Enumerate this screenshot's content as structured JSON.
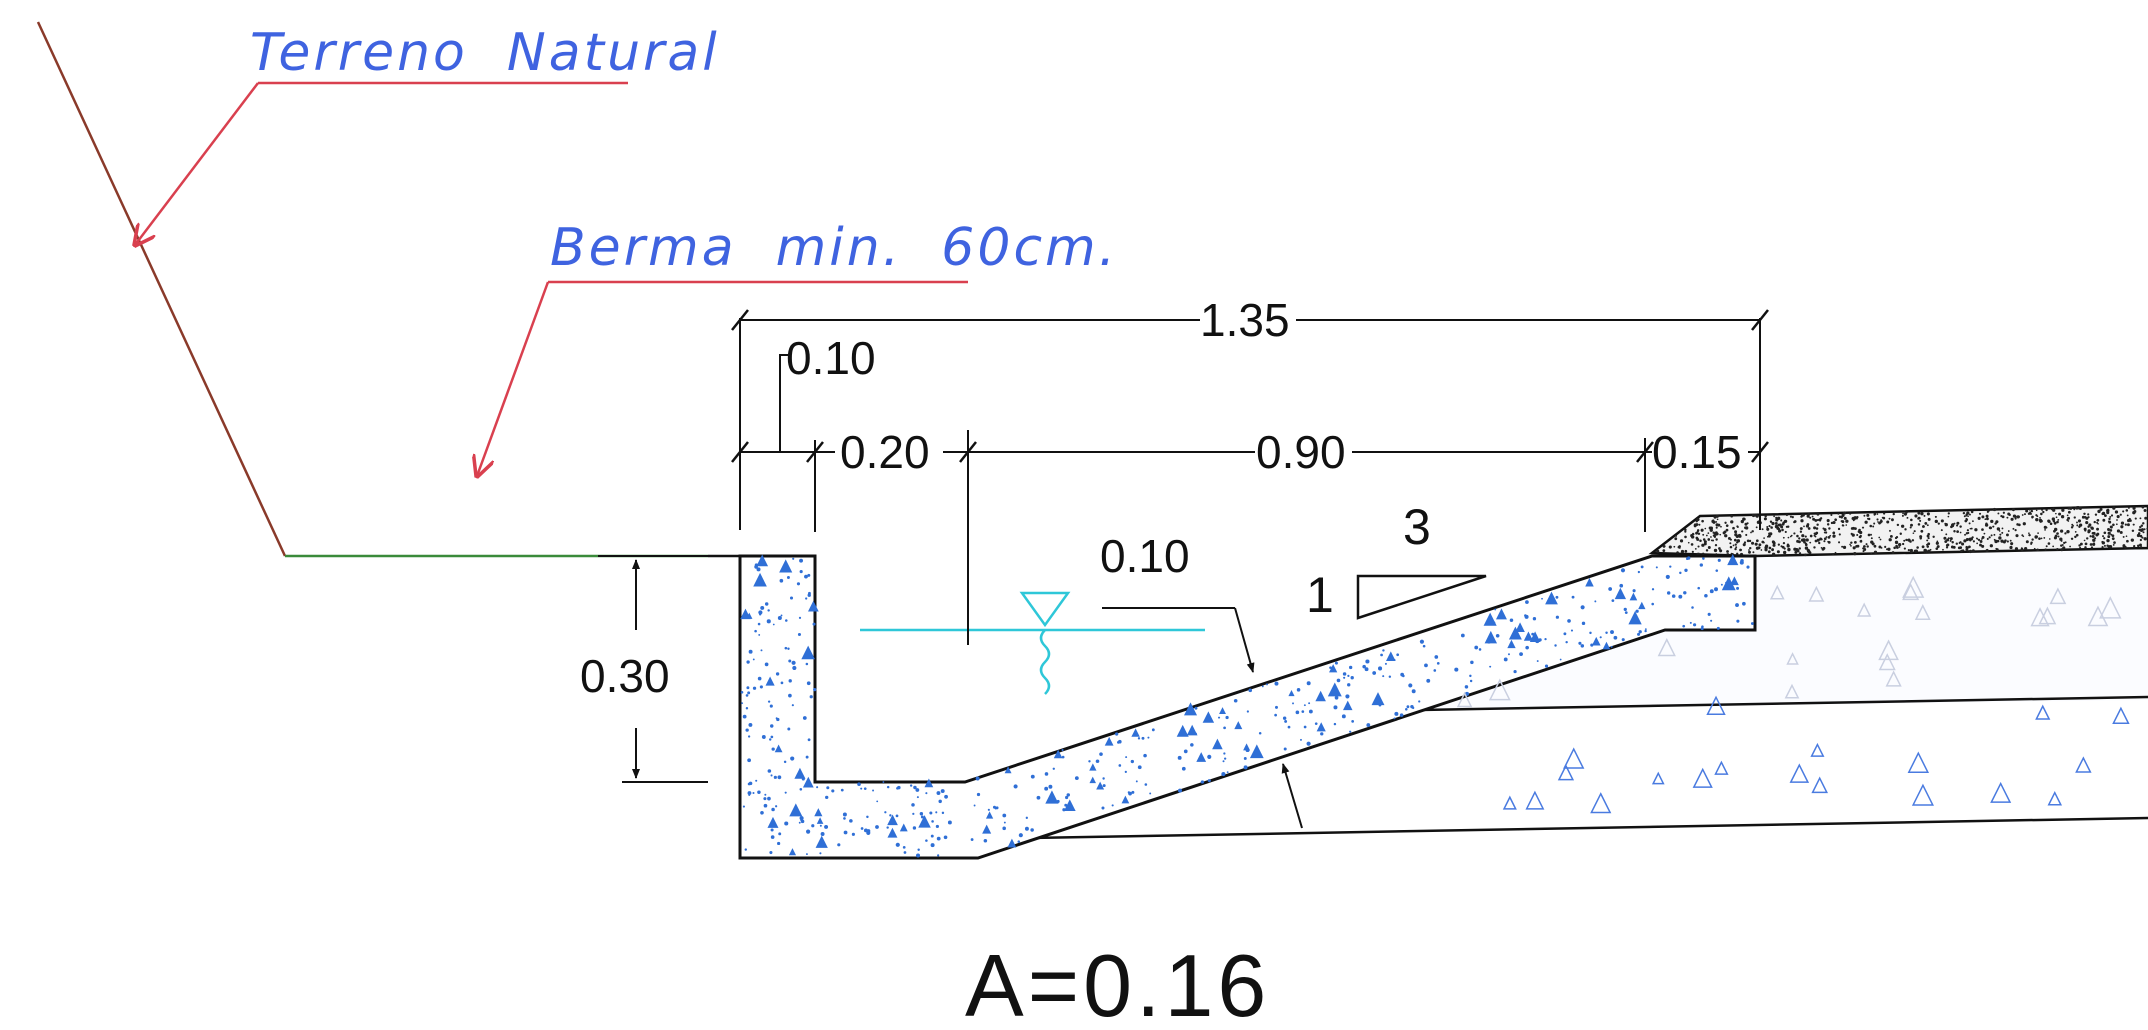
{
  "labels": {
    "terrain": "Terreno  Natural",
    "berm": "Berma  min.  60cm.",
    "dim_total": "1.35",
    "dim_lip": "0.10",
    "dim_wall": "0.20",
    "dim_bottom": "0.90",
    "dim_edge": "0.15",
    "dim_slab": "0.10",
    "dim_depth": "0.30",
    "slope_run": "3",
    "slope_rise": "1",
    "area": "A=0.16"
  },
  "colors": {
    "annotation_text": "#3f63e0",
    "leader_lines": "#d9404f",
    "ground_line": "#3a8a3a",
    "water_level": "#2ec7d8",
    "aggregate_dots": "#2f6fd6"
  }
}
